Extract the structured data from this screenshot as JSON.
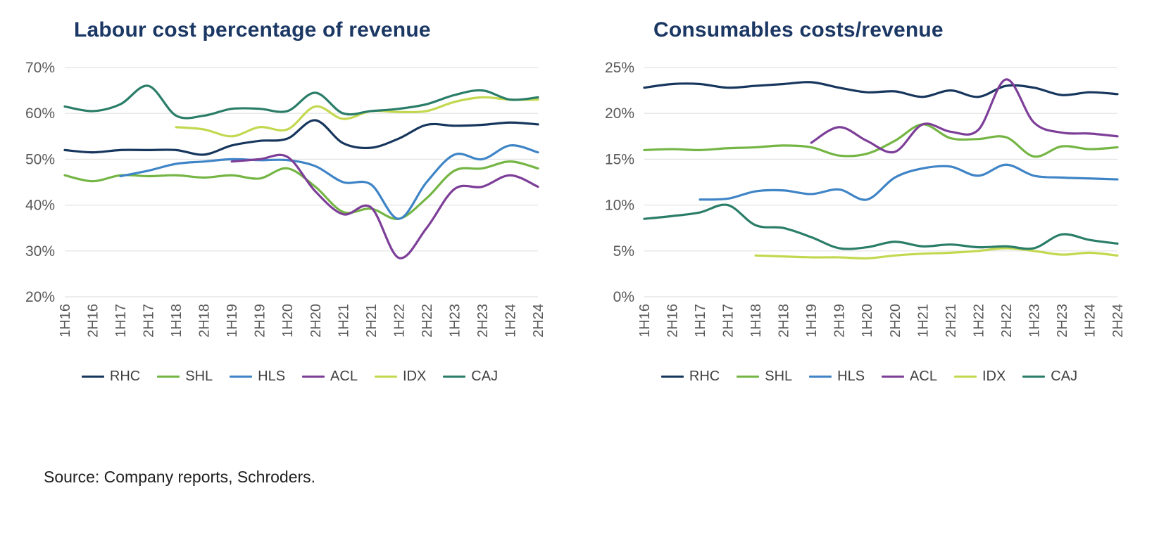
{
  "source_note": "Source: Company reports, Schroders.",
  "colors": {
    "RHC": "#17365d",
    "SHL": "#74b544",
    "HLS": "#3e84c6",
    "ACL": "#7d3e98",
    "IDX": "#c3d84f",
    "CAJ": "#2a7d68",
    "title_text": "#1b3764",
    "axis_text": "#595959",
    "gridline": "#e2e2e2"
  },
  "chart_data": [
    {
      "type": "line",
      "title": "Labour cost percentage of revenue",
      "xlabel": "",
      "ylabel": "",
      "ylim": [
        20,
        70
      ],
      "yticks": [
        20,
        30,
        40,
        50,
        60,
        70
      ],
      "ytick_labels": [
        "20%",
        "30%",
        "40%",
        "50%",
        "60%",
        "70%"
      ],
      "grid": true,
      "legend_position": "bottom",
      "categories": [
        "1H16",
        "2H16",
        "1H17",
        "2H17",
        "1H18",
        "2H18",
        "1H19",
        "2H19",
        "1H20",
        "2H20",
        "1H21",
        "2H21",
        "1H22",
        "2H22",
        "1H23",
        "2H23",
        "1H24",
        "2H24"
      ],
      "series": [
        {
          "name": "RHC",
          "color": "#17365d",
          "values": [
            52,
            51.5,
            52,
            52,
            52,
            51,
            53,
            54,
            54.5,
            58.5,
            53.5,
            52.5,
            54.5,
            57.5,
            57.3,
            57.5,
            58,
            57.6
          ]
        },
        {
          "name": "SHL",
          "color": "#74b544",
          "values": [
            46.5,
            45.2,
            46.5,
            46.3,
            46.5,
            46,
            46.5,
            45.8,
            48,
            44,
            38.5,
            39.2,
            37,
            41.5,
            47.5,
            48,
            49.5,
            48
          ]
        },
        {
          "name": "HLS",
          "color": "#3e84c6",
          "values": [
            null,
            null,
            46.3,
            47.5,
            49,
            49.5,
            50,
            49.8,
            49.8,
            48.5,
            45,
            44.5,
            37,
            45,
            51,
            50,
            53,
            51.5
          ]
        },
        {
          "name": "ACL",
          "color": "#7d3e98",
          "values": [
            null,
            null,
            null,
            null,
            null,
            null,
            49.5,
            50,
            50.5,
            43,
            38,
            39.5,
            28.5,
            35,
            43.5,
            44,
            46.5,
            44
          ]
        },
        {
          "name": "IDX",
          "color": "#c3d84f",
          "values": [
            null,
            null,
            null,
            null,
            57,
            56.5,
            55,
            57,
            56.5,
            61.5,
            58.8,
            60.5,
            60.3,
            60.5,
            62.5,
            63.5,
            63,
            63
          ]
        },
        {
          "name": "CAJ",
          "color": "#2a7d68",
          "values": [
            61.5,
            60.5,
            62,
            66,
            59.5,
            59.5,
            61,
            61,
            60.5,
            64.5,
            60,
            60.5,
            61,
            62,
            64,
            65,
            63,
            63.5
          ]
        }
      ]
    },
    {
      "type": "line",
      "title": "Consumables costs/revenue",
      "xlabel": "",
      "ylabel": "",
      "ylim": [
        0,
        25
      ],
      "yticks": [
        0,
        5,
        10,
        15,
        20,
        25
      ],
      "ytick_labels": [
        "0%",
        "5%",
        "10%",
        "15%",
        "20%",
        "25%"
      ],
      "grid": true,
      "legend_position": "bottom",
      "categories": [
        "1H16",
        "2H16",
        "1H17",
        "2H17",
        "1H18",
        "2H18",
        "1H19",
        "2H19",
        "1H20",
        "2H20",
        "1H21",
        "2H21",
        "1H22",
        "2H22",
        "1H23",
        "2H23",
        "1H24",
        "2H24"
      ],
      "series": [
        {
          "name": "RHC",
          "color": "#17365d",
          "values": [
            22.8,
            23.2,
            23.2,
            22.8,
            23,
            23.2,
            23.4,
            22.8,
            22.3,
            22.4,
            21.8,
            22.5,
            21.8,
            23,
            22.8,
            22,
            22.3,
            22.1
          ]
        },
        {
          "name": "SHL",
          "color": "#74b544",
          "values": [
            16,
            16.1,
            16,
            16.2,
            16.3,
            16.5,
            16.3,
            15.4,
            15.6,
            17,
            18.8,
            17.3,
            17.2,
            17.4,
            15.3,
            16.4,
            16.1,
            16.3
          ]
        },
        {
          "name": "HLS",
          "color": "#3e84c6",
          "values": [
            null,
            null,
            10.6,
            10.7,
            11.5,
            11.6,
            11.2,
            11.7,
            10.6,
            13,
            14,
            14.2,
            13.2,
            14.4,
            13.2,
            13,
            12.9,
            12.8
          ]
        },
        {
          "name": "ACL",
          "color": "#7d3e98",
          "values": [
            null,
            null,
            null,
            null,
            null,
            null,
            16.8,
            18.5,
            17,
            15.8,
            18.8,
            18,
            18.2,
            23.7,
            19,
            17.9,
            17.8,
            17.5
          ]
        },
        {
          "name": "IDX",
          "color": "#c3d84f",
          "values": [
            null,
            null,
            null,
            null,
            4.5,
            4.4,
            4.3,
            4.3,
            4.2,
            4.5,
            4.7,
            4.8,
            5,
            5.3,
            5,
            4.6,
            4.8,
            4.5
          ]
        },
        {
          "name": "CAJ",
          "color": "#2a7d68",
          "values": [
            8.5,
            8.8,
            9.2,
            10,
            7.8,
            7.5,
            6.5,
            5.3,
            5.4,
            6,
            5.5,
            5.7,
            5.4,
            5.5,
            5.3,
            6.8,
            6.2,
            5.8
          ]
        }
      ]
    }
  ]
}
